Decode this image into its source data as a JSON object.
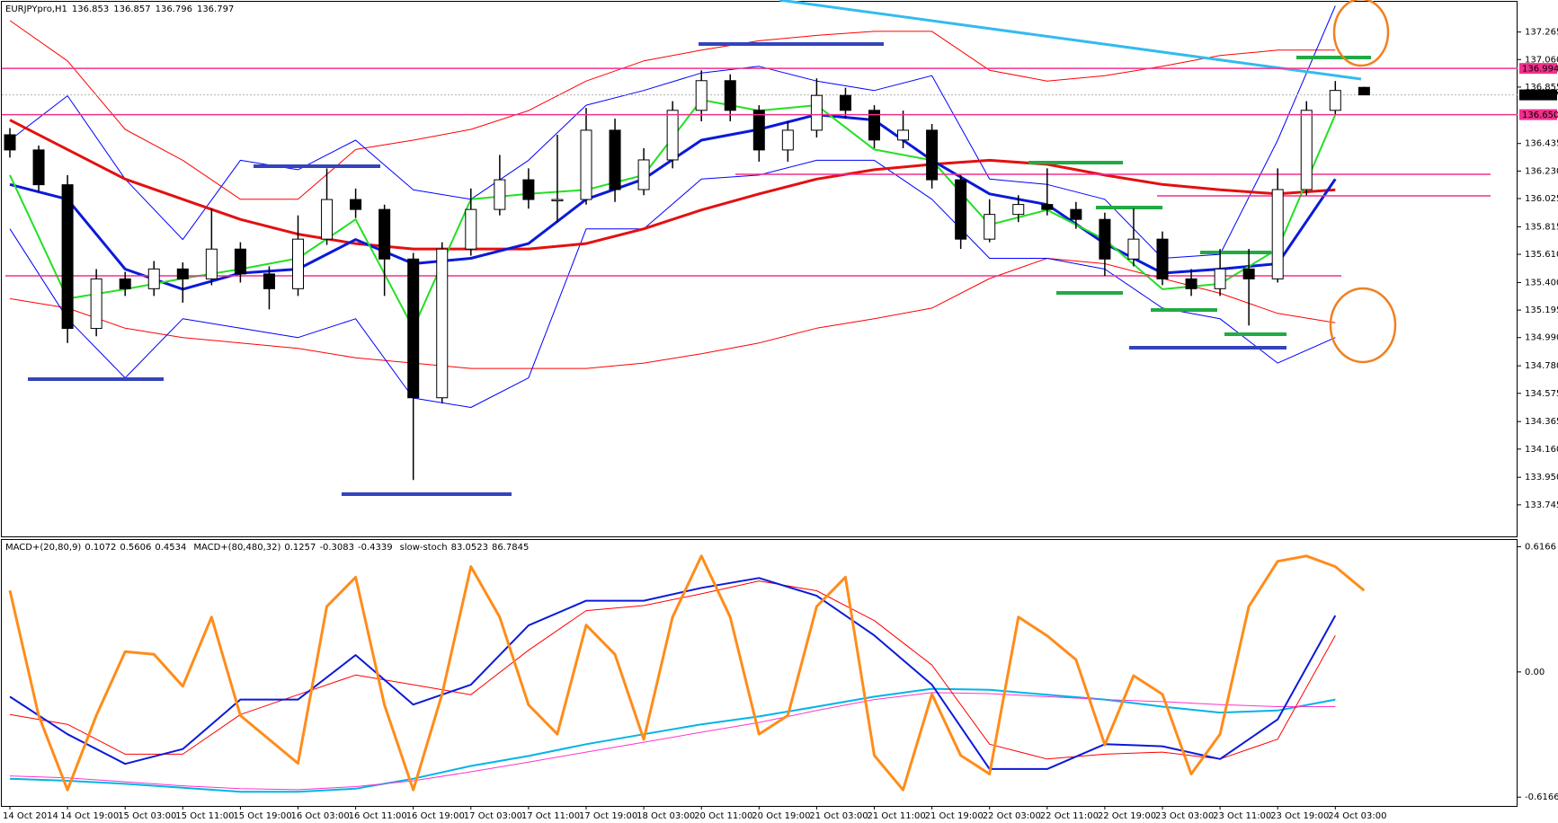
{
  "chart_data": [
    {
      "type": "candlestick",
      "symbol": "EURJPYpro,H1",
      "readout": [
        136.853,
        136.857,
        136.796,
        136.797
      ],
      "categories": [
        "14 Oct 2014",
        null,
        "14 Oct 19:00",
        null,
        "15 Oct 03:00",
        null,
        "15 Oct 11:00",
        null,
        "15 Oct 19:00",
        null,
        "16 Oct 03:00",
        null,
        "16 Oct 11:00",
        null,
        "16 Oct 19:00",
        null,
        "17 Oct 03:00",
        null,
        "17 Oct 11:00",
        null,
        "17 Oct 19:00",
        null,
        "18 Oct 03:00",
        null,
        "20 Oct 11:00",
        null,
        "20 Oct 19:00",
        null,
        "21 Oct 03:00",
        null,
        "21 Oct 11:00",
        null,
        "21 Oct 19:00",
        null,
        "22 Oct 03:00",
        null,
        "22 Oct 11:00",
        null,
        "22 Oct 19:00",
        null,
        "23 Oct 03:00",
        null,
        "23 Oct 11:00",
        null,
        "23 Oct 19:00",
        null,
        "24 Oct 03:00",
        null
      ],
      "open": [
        136.5,
        136.387,
        136.128,
        135.058,
        135.427,
        135.354,
        135.501,
        135.427,
        135.649,
        135.464,
        135.354,
        135.723,
        136.018,
        135.944,
        135.575,
        134.542,
        135.649,
        135.944,
        136.165,
        136.018,
        136.018,
        136.534,
        136.092,
        136.313,
        136.682,
        136.903,
        136.682,
        136.387,
        136.534,
        136.793,
        136.682,
        136.461,
        136.534,
        136.165,
        135.723,
        135.907,
        135.981,
        135.944,
        135.87,
        135.575,
        135.723,
        135.427,
        135.354,
        135.501,
        135.427,
        136.092,
        136.682,
        136.853
      ],
      "high": [
        136.55,
        136.42,
        136.2,
        135.5,
        135.48,
        135.56,
        135.55,
        135.95,
        135.7,
        135.52,
        135.9,
        136.25,
        136.1,
        135.98,
        135.62,
        135.7,
        136.1,
        136.35,
        136.25,
        136.5,
        136.7,
        136.62,
        136.4,
        136.75,
        136.98,
        136.95,
        136.72,
        136.6,
        136.92,
        136.85,
        136.72,
        136.68,
        136.58,
        136.2,
        136.02,
        136.05,
        136.25,
        136.0,
        135.92,
        135.95,
        135.78,
        135.5,
        135.65,
        135.65,
        136.25,
        136.75,
        136.9,
        136.857
      ],
      "low": [
        136.33,
        136.08,
        134.95,
        135.0,
        135.3,
        135.3,
        135.25,
        135.38,
        135.4,
        135.2,
        135.3,
        135.68,
        135.88,
        135.3,
        133.93,
        134.5,
        135.6,
        135.9,
        135.95,
        135.85,
        135.98,
        136.0,
        136.05,
        136.25,
        136.6,
        136.6,
        136.3,
        136.3,
        136.48,
        136.62,
        136.4,
        136.4,
        136.1,
        135.65,
        135.7,
        135.85,
        135.9,
        135.8,
        135.45,
        135.52,
        135.38,
        135.3,
        135.3,
        135.08,
        135.4,
        136.05,
        136.65,
        136.796
      ],
      "close": [
        136.387,
        136.128,
        135.058,
        135.427,
        135.354,
        135.501,
        135.427,
        135.649,
        135.464,
        135.354,
        135.723,
        136.018,
        135.944,
        135.575,
        134.542,
        135.649,
        135.944,
        136.165,
        136.018,
        136.018,
        136.534,
        136.092,
        136.313,
        136.682,
        136.903,
        136.682,
        136.387,
        136.534,
        136.793,
        136.682,
        136.461,
        136.534,
        136.165,
        135.723,
        135.907,
        135.981,
        135.944,
        135.87,
        135.575,
        135.723,
        135.427,
        135.354,
        135.501,
        135.427,
        136.092,
        136.682,
        136.83,
        136.797
      ],
      "up_color": "#ffffff",
      "down_color": "#000000",
      "series": [
        {
          "color": "#ff0000",
          "width": 1,
          "x": [
            0,
            2,
            4,
            6,
            8,
            10,
            12,
            14,
            16,
            18,
            20,
            22,
            24,
            26,
            28,
            30,
            32,
            34,
            36,
            38,
            40,
            42,
            44,
            46
          ],
          "values": [
            137.35,
            137.05,
            136.54,
            136.31,
            136.02,
            136.02,
            136.39,
            136.46,
            136.54,
            136.68,
            136.9,
            137.05,
            137.13,
            137.2,
            137.24,
            137.27,
            137.27,
            136.98,
            136.9,
            136.94,
            137.01,
            137.09,
            137.13,
            137.13
          ]
        },
        {
          "color": "#ff0000",
          "width": 1,
          "x": [
            0,
            2,
            4,
            6,
            8,
            10,
            12,
            14,
            16,
            18,
            20,
            22,
            24,
            26,
            28,
            30,
            32,
            34,
            36,
            38,
            40,
            42,
            44,
            46
          ],
          "values": [
            135.28,
            135.21,
            135.06,
            134.99,
            134.95,
            134.91,
            134.84,
            134.8,
            134.76,
            134.76,
            134.76,
            134.8,
            134.87,
            134.95,
            135.06,
            135.13,
            135.21,
            135.43,
            135.58,
            135.54,
            135.43,
            135.32,
            135.17,
            135.1
          ]
        },
        {
          "color": "#0000ff",
          "width": 1,
          "x": [
            0,
            2,
            4,
            6,
            8,
            10,
            12,
            14,
            16,
            18,
            20,
            22,
            24,
            26,
            28,
            30,
            32,
            34,
            36,
            38,
            40,
            42,
            44,
            46
          ],
          "values": [
            136.46,
            136.79,
            136.17,
            135.72,
            136.31,
            136.24,
            136.46,
            136.09,
            136.02,
            136.31,
            136.72,
            136.83,
            136.96,
            137.01,
            136.9,
            136.83,
            136.94,
            136.17,
            136.13,
            136.02,
            135.58,
            135.61,
            136.46,
            137.46
          ]
        },
        {
          "color": "#0000ff",
          "width": 1,
          "x": [
            0,
            2,
            4,
            6,
            8,
            10,
            12,
            14,
            16,
            18,
            20,
            22,
            24,
            26,
            28,
            30,
            32,
            34,
            36,
            38,
            40,
            42,
            44,
            46
          ],
          "values": [
            135.8,
            135.13,
            134.69,
            135.13,
            135.06,
            134.99,
            135.13,
            134.54,
            134.47,
            134.69,
            135.8,
            135.8,
            136.17,
            136.2,
            136.31,
            136.31,
            136.02,
            135.58,
            135.58,
            135.5,
            135.21,
            135.13,
            134.8,
            134.99
          ]
        },
        {
          "color": "#e31010",
          "width": 3,
          "x": [
            0,
            2,
            4,
            6,
            8,
            10,
            12,
            14,
            16,
            18,
            20,
            22,
            24,
            26,
            28,
            30,
            32,
            34,
            36,
            38,
            40,
            42,
            44,
            46
          ],
          "values": [
            136.61,
            136.39,
            136.17,
            136.02,
            135.87,
            135.76,
            135.69,
            135.65,
            135.65,
            135.65,
            135.69,
            135.8,
            135.94,
            136.06,
            136.17,
            136.24,
            136.28,
            136.31,
            136.28,
            136.2,
            136.13,
            136.09,
            136.06,
            136.09
          ]
        },
        {
          "color": "#0a1ad8",
          "width": 3,
          "x": [
            0,
            2,
            4,
            6,
            8,
            10,
            12,
            14,
            16,
            18,
            20,
            22,
            24,
            26,
            28,
            30,
            32,
            34,
            36,
            38,
            40,
            42,
            44,
            46
          ],
          "values": [
            136.13,
            136.02,
            135.5,
            135.35,
            135.47,
            135.5,
            135.72,
            135.54,
            135.58,
            135.69,
            136.02,
            136.17,
            136.46,
            136.54,
            136.65,
            136.61,
            136.31,
            136.06,
            135.98,
            135.69,
            135.47,
            135.5,
            135.54,
            136.17
          ]
        },
        {
          "color": "#22e022",
          "width": 2,
          "x": [
            0,
            2,
            4,
            6,
            8,
            10,
            12,
            14,
            16,
            18,
            20,
            22,
            24,
            26,
            28,
            30,
            32,
            34,
            36,
            38,
            40,
            42,
            44,
            46
          ],
          "values": [
            136.2,
            135.28,
            135.35,
            135.43,
            135.5,
            135.58,
            135.87,
            135.06,
            136.02,
            136.06,
            136.09,
            136.2,
            136.76,
            136.68,
            136.72,
            136.39,
            136.31,
            135.83,
            135.94,
            135.72,
            135.35,
            135.39,
            135.65,
            136.65
          ]
        }
      ],
      "price_levels": [
        136.994,
        {
          "value": 136.65,
          "label": "136.650"
        }
      ],
      "level_color": "#f0308c",
      "current_price": 136.797,
      "ylim": [
        133.51,
        137.49
      ],
      "yticks": [
        137.265,
        {
          "value": 137.06,
          "label": "137.060"
        },
        136.855,
        136.435,
        {
          "value": 136.23,
          "label": "136.230"
        },
        136.025,
        135.815,
        {
          "value": 135.61,
          "label": "135.610"
        },
        {
          "value": 135.4,
          "label": "135.400"
        },
        135.195,
        {
          "value": 134.99,
          "label": "134.990"
        },
        {
          "value": 134.78,
          "label": "134.780"
        },
        134.575,
        134.365,
        {
          "value": 134.16,
          "label": "134.160"
        },
        {
          "value": 133.95,
          "label": "133.950"
        },
        133.745
      ]
    },
    {
      "type": "line",
      "indicators": [
        {
          "name": "MACD+(20,80,9)",
          "values": [
            0.1072,
            0.5606,
            0.4534
          ]
        },
        {
          "name": "MACD+(80,480,32)",
          "values": [
            0.1257,
            -0.3083,
            -0.4339
          ]
        },
        {
          "name": "slow-stoch",
          "values": [
            83.0523,
            86.7845
          ]
        }
      ],
      "series": [
        {
          "color": "#00b4e6",
          "width": 2,
          "x": [
            0,
            2,
            4,
            6,
            8,
            10,
            12,
            14,
            16,
            18,
            20,
            22,
            24,
            26,
            28,
            30,
            32,
            34,
            36,
            38,
            40,
            42,
            44,
            46
          ],
          "values": [
            -0.526,
            -0.536,
            -0.551,
            -0.57,
            -0.59,
            -0.59,
            -0.575,
            -0.526,
            -0.463,
            -0.414,
            -0.356,
            -0.307,
            -0.258,
            -0.219,
            -0.171,
            -0.122,
            -0.083,
            -0.088,
            -0.112,
            -0.136,
            -0.171,
            -0.2,
            -0.19,
            -0.136
          ]
        },
        {
          "color": "#ff33cc",
          "width": 1,
          "x": [
            0,
            2,
            4,
            6,
            8,
            10,
            12,
            14,
            16,
            18,
            20,
            22,
            24,
            26,
            28,
            30,
            32,
            34,
            36,
            38,
            40,
            42,
            44,
            46
          ],
          "values": [
            -0.512,
            -0.522,
            -0.541,
            -0.561,
            -0.575,
            -0.58,
            -0.565,
            -0.536,
            -0.492,
            -0.444,
            -0.395,
            -0.346,
            -0.297,
            -0.249,
            -0.19,
            -0.136,
            -0.102,
            -0.107,
            -0.122,
            -0.136,
            -0.146,
            -0.161,
            -0.171,
            -0.171
          ]
        },
        {
          "color": "#ff0000",
          "width": 1,
          "x": [
            0,
            2,
            4,
            6,
            8,
            10,
            12,
            14,
            16,
            18,
            20,
            22,
            24,
            26,
            28,
            30,
            32,
            34,
            36,
            38,
            40,
            42,
            44,
            46
          ],
          "values": [
            -0.21,
            -0.258,
            -0.405,
            -0.405,
            -0.21,
            -0.112,
            -0.015,
            -0.063,
            -0.112,
            0.107,
            0.302,
            0.327,
            0.385,
            0.448,
            0.4,
            0.253,
            0.034,
            -0.356,
            -0.429,
            -0.405,
            -0.395,
            -0.429,
            -0.331,
            0.18
          ]
        },
        {
          "color": "#0a1ad8",
          "width": 2,
          "x": [
            0,
            2,
            4,
            6,
            8,
            10,
            12,
            14,
            16,
            18,
            20,
            22,
            24,
            26,
            28,
            30,
            32,
            34,
            36,
            38,
            40,
            42,
            44,
            46
          ],
          "values": [
            -0.122,
            -0.307,
            -0.453,
            -0.38,
            -0.136,
            -0.136,
            0.083,
            -0.161,
            -0.063,
            0.229,
            0.351,
            0.351,
            0.414,
            0.463,
            0.375,
            0.18,
            -0.063,
            -0.478,
            -0.478,
            -0.356,
            -0.366,
            -0.429,
            -0.234,
            0.278
          ]
        },
        {
          "color": "#ff8c1a",
          "width": 3,
          "axis": "y2",
          "x": [
            0,
            1,
            2,
            3,
            4,
            5,
            6,
            7,
            8,
            9,
            10,
            11,
            12,
            13,
            14,
            15,
            16,
            17,
            18,
            19,
            20,
            21,
            22,
            23,
            24,
            25,
            26,
            27,
            28,
            29,
            30,
            31,
            32,
            33,
            34,
            35,
            36,
            37,
            38,
            39,
            40,
            41,
            42,
            43,
            44,
            45,
            46,
            47
          ],
          "values": [
            81,
            34,
            6,
            34,
            58,
            57,
            45,
            71,
            34,
            25,
            16,
            75,
            86,
            38,
            6,
            42,
            90,
            71,
            38,
            27,
            68,
            57,
            25,
            71,
            94,
            71,
            27,
            34,
            75,
            86,
            19,
            6,
            42,
            19,
            12,
            71,
            64,
            55,
            23,
            49,
            42,
            12,
            27,
            75,
            92,
            94,
            90,
            81
          ]
        }
      ],
      "ylim": [
        -0.66,
        0.65
      ],
      "yticks": [
        0.6166,
        {
          "value": 0,
          "label": "0.00"
        },
        -0.6166
      ],
      "y2lim": [
        0,
        100
      ]
    }
  ]
}
